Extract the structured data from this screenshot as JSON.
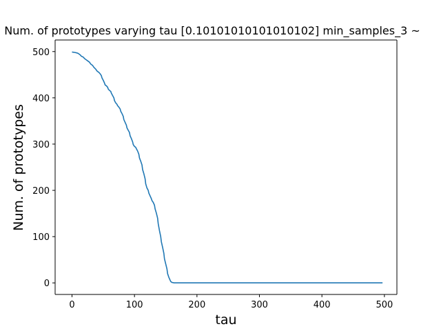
{
  "chart_data": {
    "type": "line",
    "title": "Num. of prototypes varying tau [0.10101010101010102] min_samples_3 ~",
    "xlabel": "tau",
    "ylabel": "Num. of prototypes",
    "xlim": [
      -27,
      520
    ],
    "ylim": [
      -25,
      525
    ],
    "xticks": [
      0,
      100,
      200,
      300,
      400,
      500
    ],
    "yticks": [
      0,
      100,
      200,
      300,
      400,
      500
    ],
    "grid": false,
    "legend": "none",
    "series": [
      {
        "color": "#1f77b4",
        "x": [
          0,
          5,
          8,
          10,
          13,
          15,
          18,
          20,
          23,
          25,
          28,
          30,
          33,
          35,
          38,
          40,
          43,
          45,
          47,
          48,
          50,
          52,
          53,
          55,
          57,
          58,
          60,
          62,
          63,
          65,
          67,
          68,
          70,
          72,
          73,
          75,
          77,
          78,
          80,
          82,
          83,
          85,
          87,
          88,
          90,
          92,
          93,
          95,
          97,
          98,
          100,
          102,
          103,
          105,
          107,
          108,
          110,
          112,
          113,
          115,
          117,
          118,
          120,
          122,
          123,
          125,
          127,
          128,
          130,
          132,
          133,
          135,
          137,
          138,
          140,
          142,
          143,
          145,
          147,
          148,
          150,
          152,
          153,
          155,
          157,
          158,
          160,
          162,
          163,
          165,
          167,
          168,
          170,
          172,
          175,
          180,
          200,
          250,
          300,
          350,
          400,
          450,
          497
        ],
        "y": [
          499,
          498,
          497,
          496,
          493,
          490,
          488,
          485,
          482,
          480,
          477,
          473,
          470,
          466,
          462,
          458,
          455,
          452,
          448,
          443,
          438,
          432,
          428,
          426,
          423,
          419,
          416,
          414,
          410,
          405,
          400,
          394,
          389,
          386,
          383,
          380,
          376,
          371,
          366,
          360,
          353,
          347,
          341,
          335,
          330,
          325,
          318,
          312,
          305,
          299,
          295,
          293,
          290,
          285,
          278,
          270,
          263,
          255,
          245,
          236,
          225,
          214,
          205,
          200,
          194,
          188,
          182,
          178,
          174,
          168,
          160,
          151,
          140,
          128,
          113,
          100,
          89,
          77,
          64,
          52,
          41,
          30,
          20,
          12,
          6,
          3,
          1,
          0.5,
          0,
          0,
          0,
          0,
          0,
          0,
          0,
          0,
          0,
          0,
          0,
          0,
          0,
          0,
          0
        ]
      }
    ]
  }
}
